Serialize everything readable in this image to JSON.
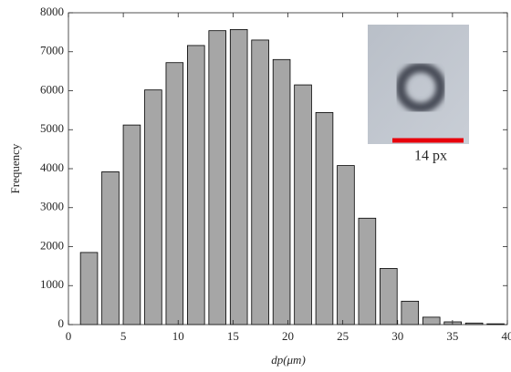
{
  "chart_data": {
    "type": "histogram",
    "xlabel": "dp(μm)",
    "ylabel": "Frequency",
    "bins": [
      0.9,
      2.85,
      4.8,
      6.75,
      8.7,
      10.65,
      12.6,
      14.55,
      16.5,
      18.45,
      20.4,
      22.35,
      24.3,
      26.25,
      28.2,
      30.15,
      32.1,
      34.05,
      36,
      37.95,
      39.9
    ],
    "values": [
      1850,
      3920,
      5120,
      6020,
      6720,
      7160,
      7540,
      7570,
      7300,
      6800,
      6150,
      5440,
      4080,
      2730,
      1440,
      600,
      190,
      70,
      40,
      20
    ],
    "color": "#a6a6a6",
    "xlim": [
      0,
      40
    ],
    "xticks": [
      0,
      5,
      10,
      15,
      20,
      25,
      30,
      35,
      40
    ],
    "ylim": [
      0,
      8000
    ],
    "yticks": [
      0,
      1000,
      2000,
      3000,
      4000,
      5000,
      6000,
      7000,
      8000
    ],
    "annotations": [
      "14 px"
    ]
  }
}
